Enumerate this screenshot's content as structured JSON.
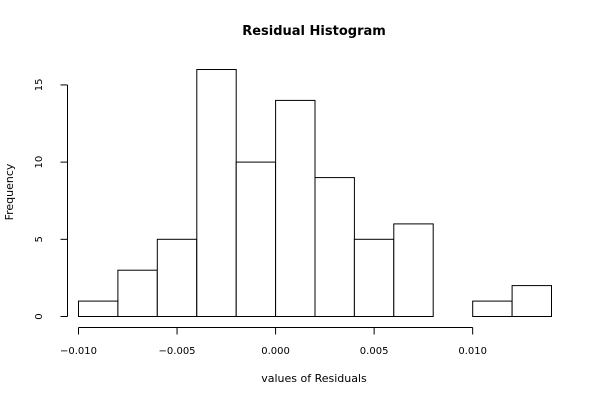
{
  "chart_data": {
    "type": "bar",
    "title": "Residual Histogram",
    "xlabel": "values of Residuals",
    "ylabel": "Frequency",
    "bins": [
      {
        "from": -0.01,
        "to": -0.008,
        "count": 1
      },
      {
        "from": -0.008,
        "to": -0.006,
        "count": 3
      },
      {
        "from": -0.006,
        "to": -0.004,
        "count": 5
      },
      {
        "from": -0.004,
        "to": -0.002,
        "count": 16
      },
      {
        "from": -0.002,
        "to": 0.0,
        "count": 10
      },
      {
        "from": 0.0,
        "to": 0.002,
        "count": 14
      },
      {
        "from": 0.002,
        "to": 0.004,
        "count": 9
      },
      {
        "from": 0.004,
        "to": 0.006,
        "count": 5
      },
      {
        "from": 0.006,
        "to": 0.008,
        "count": 6
      },
      {
        "from": 0.008,
        "to": 0.01,
        "count": 0
      },
      {
        "from": 0.01,
        "to": 0.012,
        "count": 1
      },
      {
        "from": 0.012,
        "to": 0.014,
        "count": 2
      }
    ],
    "xlim": [
      -0.01,
      0.014
    ],
    "ylim": [
      0,
      16
    ],
    "xticks": [
      -0.01,
      -0.005,
      0.0,
      0.005,
      0.01
    ],
    "xtick_labels": [
      "−0.010",
      "−0.005",
      "0.000",
      "0.005",
      "0.010"
    ],
    "yticks": [
      0,
      5,
      10,
      15
    ],
    "ytick_labels": [
      "0",
      "5",
      "10",
      "15"
    ],
    "grid": false,
    "legend": "none",
    "colors": {
      "bar_fill": "#ffffff",
      "bar_stroke": "#000000"
    }
  }
}
